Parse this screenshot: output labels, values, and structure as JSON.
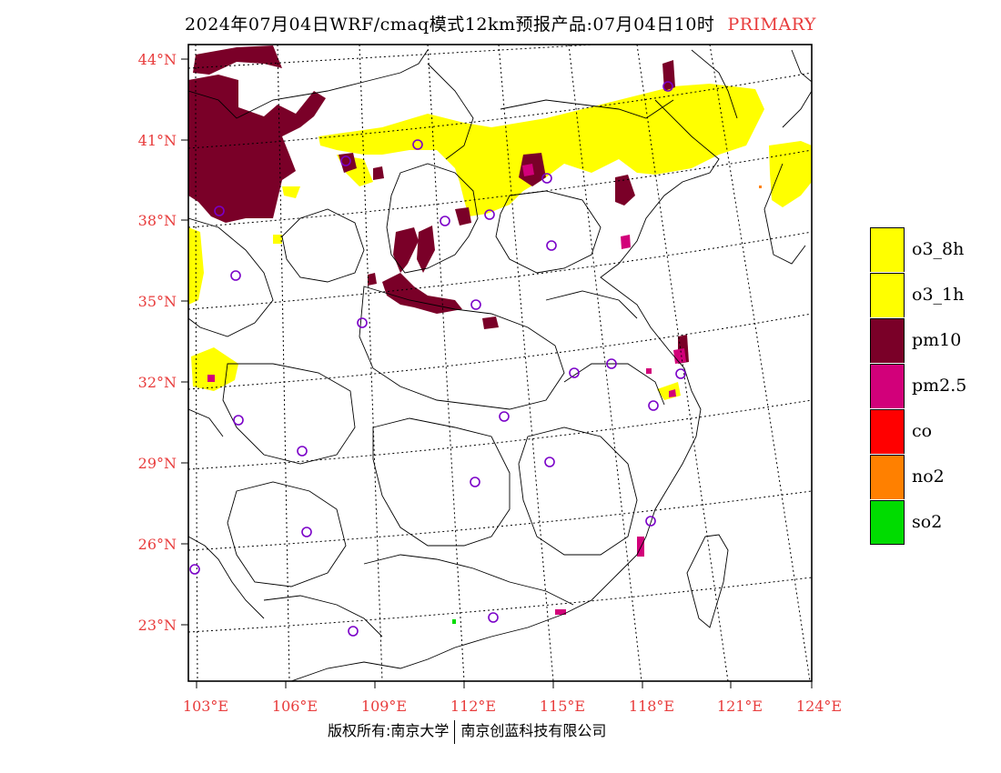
{
  "title": {
    "main": "2024年07月04日WRF/cmaq模式12km预报产品:07月04日10时",
    "tag": "PRIMARY"
  },
  "map": {
    "lat_labels": [
      "44°N",
      "41°N",
      "38°N",
      "35°N",
      "32°N",
      "29°N",
      "26°N",
      "23°N"
    ],
    "lon_labels": [
      "103°E",
      "106°E",
      "109°E",
      "112°E",
      "115°E",
      "118°E",
      "121°E",
      "124°E"
    ]
  },
  "legend": {
    "items": [
      {
        "label": "o3_8h",
        "color": "#ffff00"
      },
      {
        "label": "o3_1h",
        "color": "#ffff00"
      },
      {
        "label": "pm10",
        "color": "#7a0028"
      },
      {
        "label": "pm2.5",
        "color": "#d2007a"
      },
      {
        "label": "co",
        "color": "#ff0000"
      },
      {
        "label": "no2",
        "color": "#ff8000"
      },
      {
        "label": "so2",
        "color": "#00dc00"
      }
    ]
  },
  "copyright": {
    "left": "版权所有:南京大学",
    "right": "南京创蓝科技有限公司"
  },
  "colors": {
    "o3": "#ffff00",
    "pm10": "#7a0028",
    "pm25": "#d2007a",
    "station": "#7a00c8",
    "axis_label": "#e83c3c"
  }
}
